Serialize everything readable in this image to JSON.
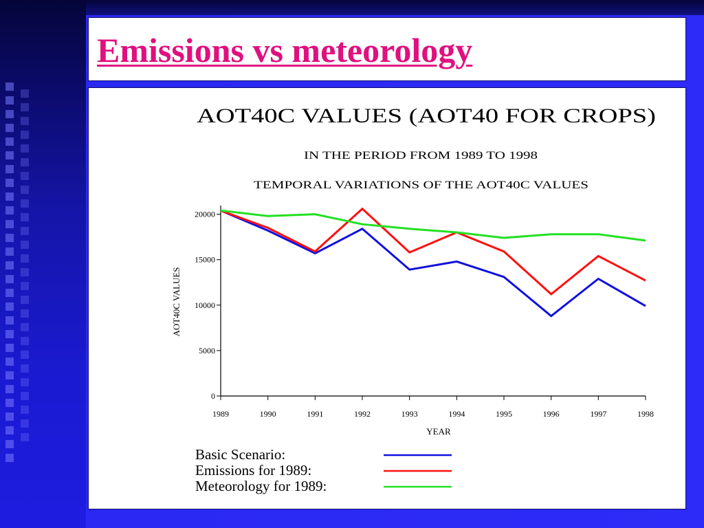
{
  "slide": {
    "title": "Emissions vs meteorology"
  },
  "colors": {
    "title_text": "#e0107f",
    "background": "#2a28f2",
    "series_basic": "#1010e0",
    "series_emissions": "#ff1010",
    "series_meteorology": "#22e022"
  },
  "chart_data": {
    "type": "line",
    "title": "AOT40C VALUES (AOT40 FOR CROPS)",
    "subtitle_1": "IN THE PERIOD FROM 1989 TO 1998",
    "subtitle_2": "TEMPORAL VARIATIONS OF THE AOT40C VALUES",
    "xlabel": "YEAR",
    "ylabel": "AOT40C VALUES",
    "x": [
      "1989",
      "1990",
      "1991",
      "1992",
      "1993",
      "1994",
      "1995",
      "1996",
      "1997",
      "1998"
    ],
    "yticks": [
      "0",
      "5000",
      "10000",
      "15000",
      "20000"
    ],
    "ylim": [
      0,
      20500
    ],
    "grid": false,
    "legend_placement": "bottom",
    "series": [
      {
        "name": "Basic Scenario:",
        "color": "#1010e0",
        "values": [
          20400,
          18200,
          15700,
          18400,
          13900,
          14800,
          13100,
          8800,
          12900,
          9900
        ]
      },
      {
        "name": "Emissions for 1989:",
        "color": "#ff1010",
        "values": [
          20400,
          18500,
          15900,
          20600,
          15800,
          18000,
          15900,
          11200,
          15400,
          12700
        ]
      },
      {
        "name": "Meteorology for 1989:",
        "color": "#22e022",
        "values": [
          20400,
          19800,
          20000,
          18900,
          18400,
          18000,
          17400,
          17800,
          17800,
          17100
        ]
      }
    ]
  }
}
